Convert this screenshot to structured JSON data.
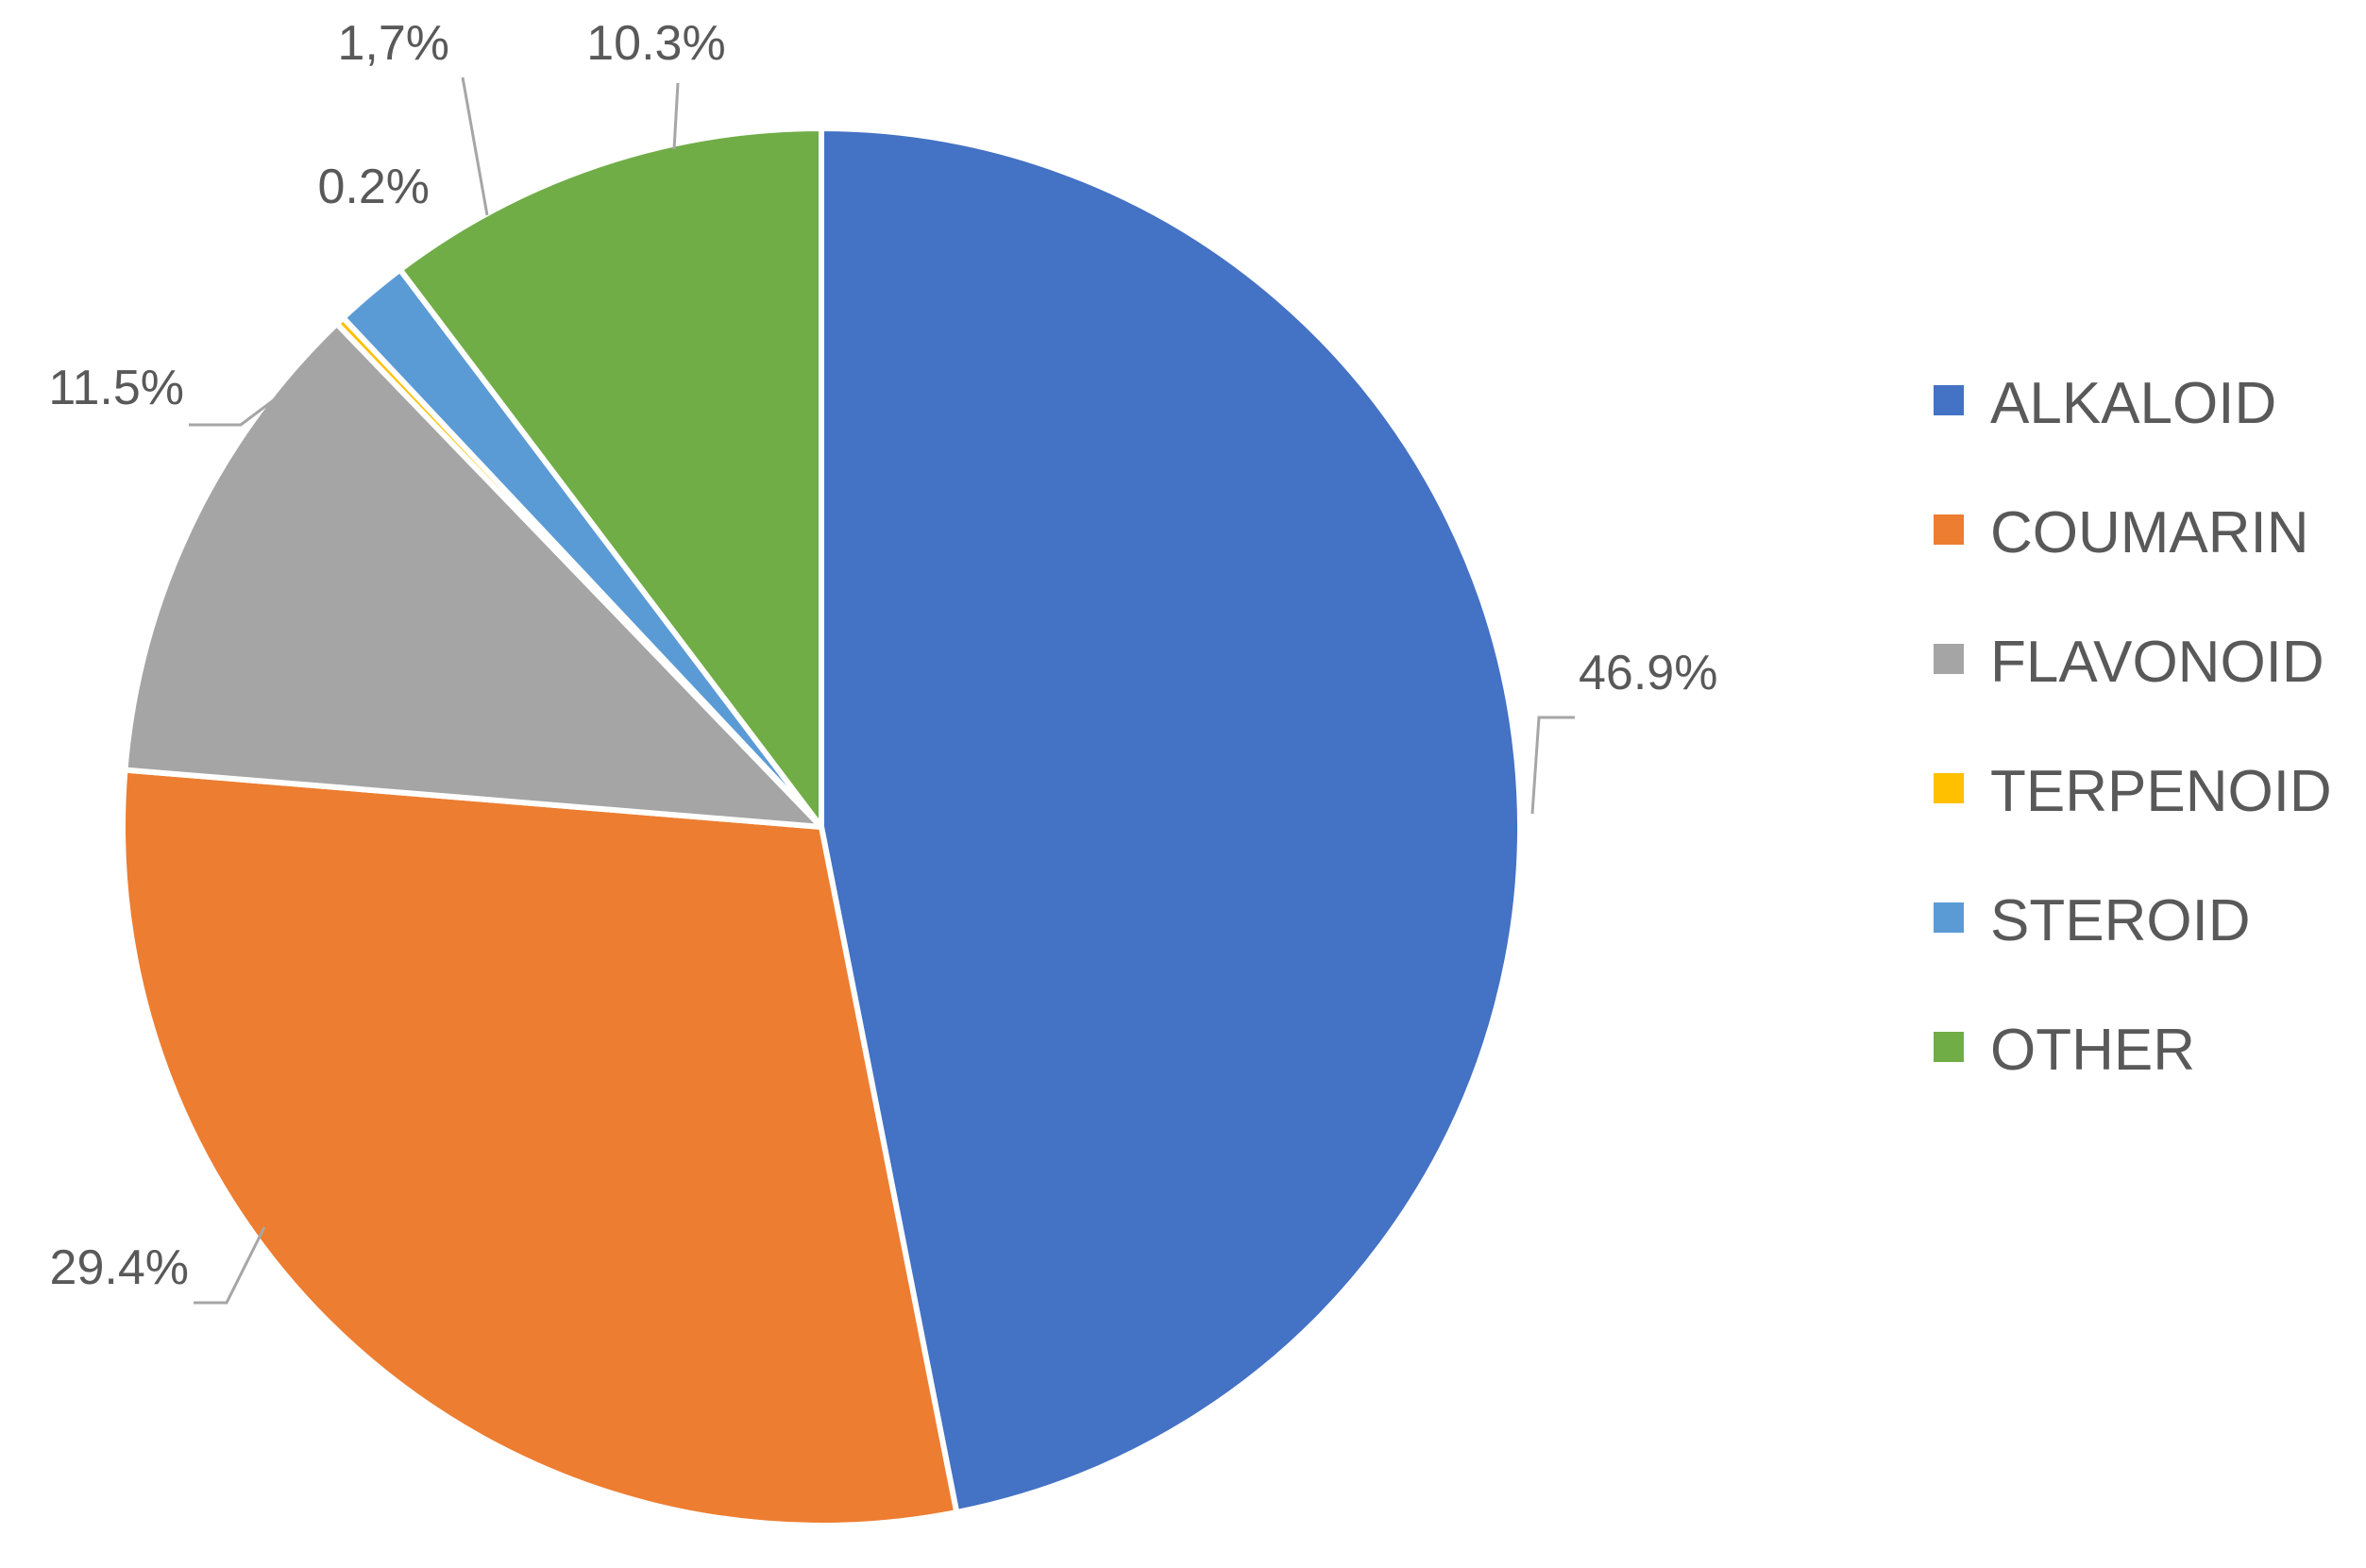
{
  "chart_data": {
    "type": "pie",
    "categories": [
      "ALKALOID",
      "COUMARIN",
      "FLAVONOID",
      "TERPENOID",
      "STEROID",
      "OTHER"
    ],
    "values": [
      46.9,
      29.4,
      11.5,
      0.2,
      1.7,
      10.3
    ],
    "labels": [
      "46.9%",
      "29.4%",
      "11.5%",
      "0.2%",
      "1,7%",
      "10.3%"
    ],
    "colors": [
      "#4472C4",
      "#ED7D31",
      "#A5A5A5",
      "#FFC000",
      "#5B9BD5",
      "#70AD47"
    ],
    "legend_position": "right",
    "start_angle": "12 o'clock",
    "direction": "clockwise"
  }
}
